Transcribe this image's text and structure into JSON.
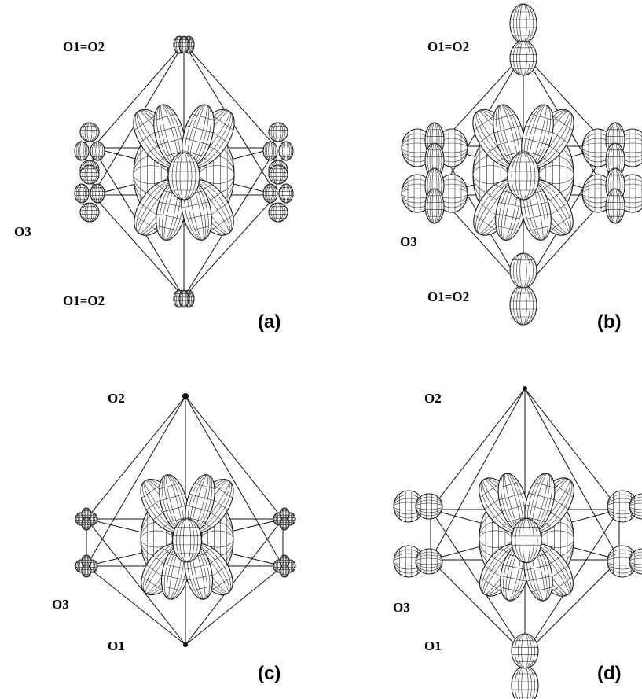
{
  "panels": [
    {
      "id": "a",
      "panel_label": "(a)",
      "labels": {
        "top": "O1=O2",
        "bottom": "O1=O2",
        "side": "O3"
      },
      "apex_lobes": "small",
      "equatorial_lobes": "stacked"
    },
    {
      "id": "b",
      "panel_label": "(b)",
      "labels": {
        "top": "O1=O2",
        "bottom": "O1=O2",
        "side": "O3"
      },
      "apex_lobes": "large",
      "equatorial_lobes": "large"
    },
    {
      "id": "c",
      "panel_label": "(c)",
      "labels": {
        "top": "O2",
        "bottom": "O1",
        "side": "O3"
      },
      "apex_lobes": "dot",
      "equatorial_lobes": "small"
    },
    {
      "id": "d",
      "panel_label": "(d)",
      "labels": {
        "top": "O2",
        "bottom": "O1",
        "side": "O3"
      },
      "apex_lobes": "top-dot-bottom-large",
      "equatorial_lobes": "large"
    }
  ]
}
